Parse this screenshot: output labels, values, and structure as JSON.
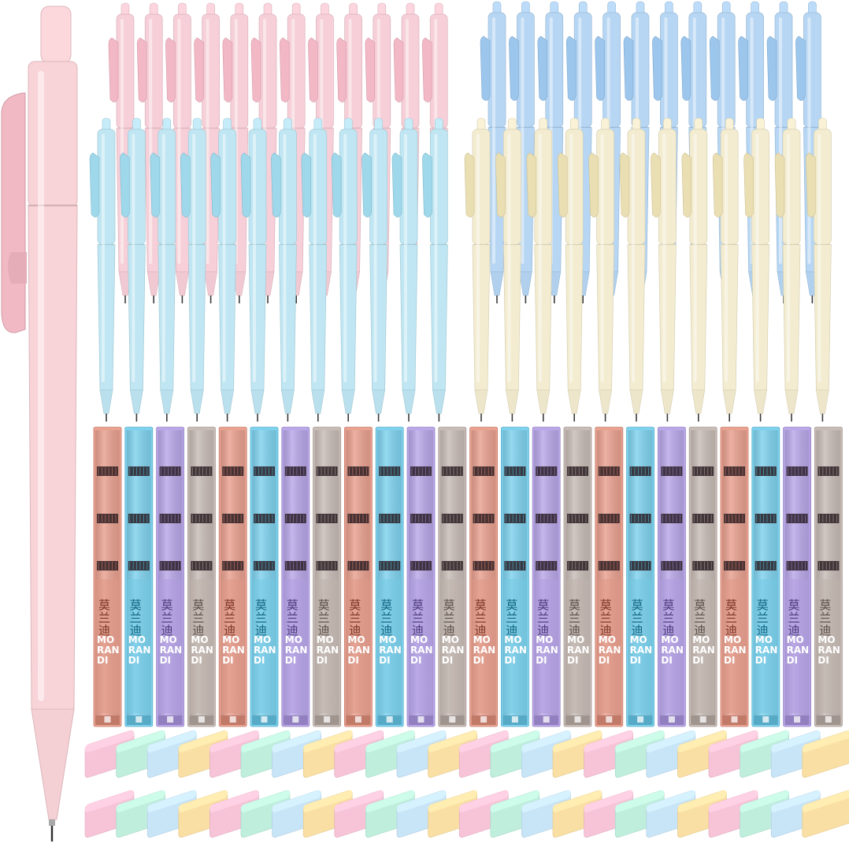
{
  "image": {
    "description_hidden": false,
    "background": "#ffffff"
  },
  "lead_case": {
    "brand_cn": "莫兰迪",
    "brand_en_lines": [
      "MO",
      "RAN",
      "DI"
    ],
    "count": 24
  },
  "pencil_groups": [
    {
      "name": "pink",
      "color": "#f6cfd8",
      "clip": "#f2b8c6",
      "count": 12
    },
    {
      "name": "blue",
      "color": "#b6d6f3",
      "clip": "#9cc6ec",
      "count": 12
    },
    {
      "name": "cyan",
      "color": "#bfe6f2",
      "clip": "#9fd8ea",
      "count": 12
    },
    {
      "name": "cream",
      "color": "#f3ecd0",
      "clip": "#eadfb3",
      "count": 12
    }
  ],
  "lead_case_colors": [
    "#e9a190",
    "#7fd2ee",
    "#b9a7e8",
    "#c8bcb6"
  ],
  "eraser_colors": [
    "#f7c3d7",
    "#bfeedd",
    "#c8e4f7",
    "#f9dfa3"
  ],
  "eraser_count": 48,
  "large_pencil": {
    "color": "#f8d3d8",
    "clip": "#f0b9c3"
  }
}
